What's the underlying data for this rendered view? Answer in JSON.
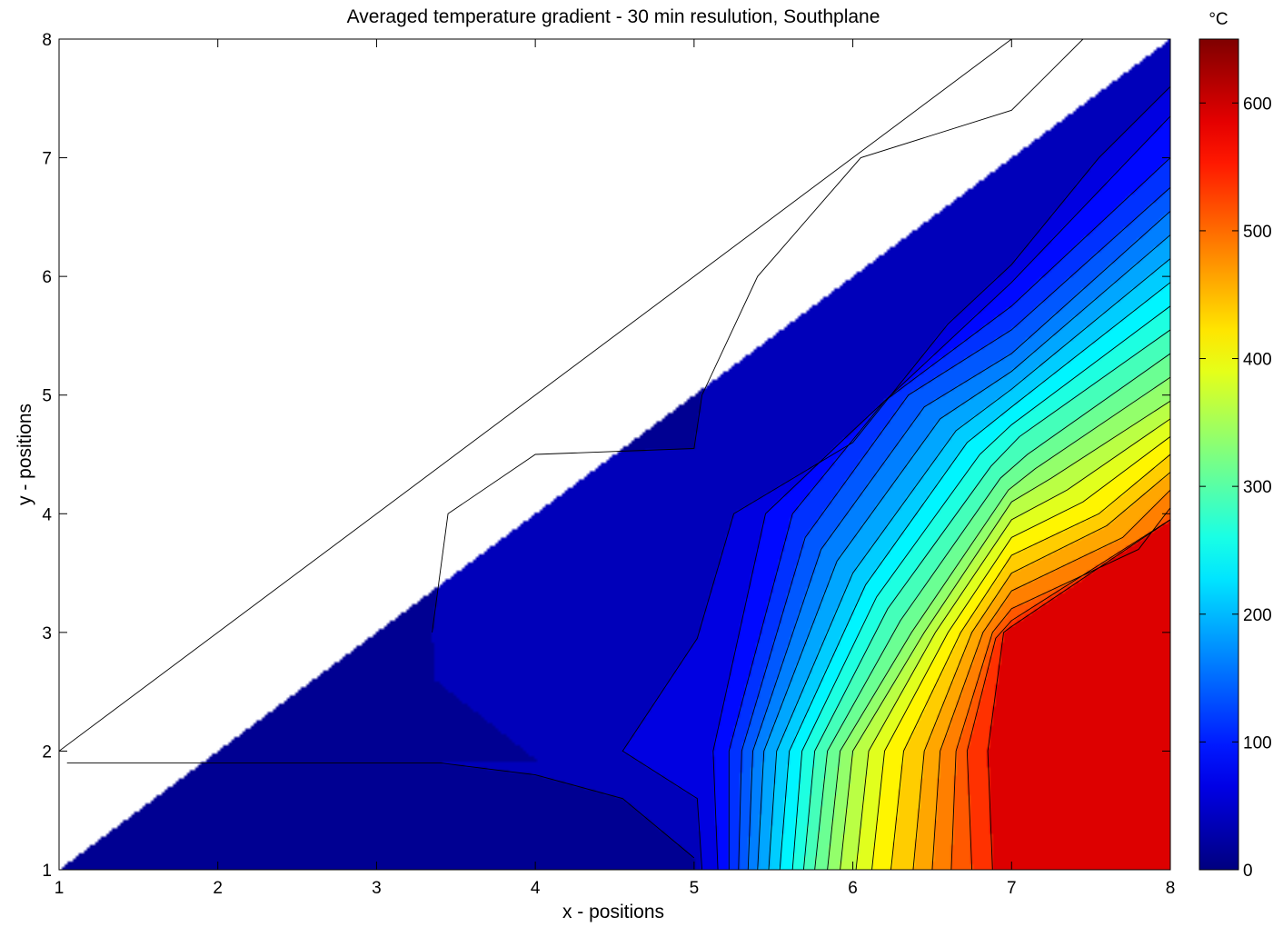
{
  "chart_data": {
    "type": "contour",
    "title": "Averaged temperature gradient - 30 min resulution, Southplane",
    "xlabel": "x - positions",
    "ylabel": "y - positions",
    "xlim": [
      1,
      8
    ],
    "ylim": [
      1,
      8
    ],
    "x_ticks": [
      "1",
      "2",
      "3",
      "4",
      "5",
      "6",
      "7",
      "8"
    ],
    "y_ticks": [
      "1",
      "2",
      "3",
      "4",
      "5",
      "6",
      "7",
      "8"
    ],
    "colorbar": {
      "unit": "°C",
      "range": [
        0,
        650
      ],
      "ticks": [
        "0",
        "100",
        "200",
        "300",
        "400",
        "500",
        "600"
      ],
      "tick_values": [
        0,
        100,
        200,
        300,
        400,
        500,
        600
      ],
      "colormap": "jet"
    },
    "levels": [
      0,
      25,
      50,
      75,
      100,
      125,
      150,
      175,
      200,
      225,
      250,
      275,
      300,
      325,
      350,
      375,
      400,
      425,
      450,
      475,
      500,
      525,
      550,
      575,
      600
    ],
    "valid_region": "y <= x (upper-left triangle is empty)",
    "contours": [
      {
        "level": 25,
        "points": [
          [
            1.05,
            1.9
          ],
          [
            3.4,
            1.9
          ],
          [
            4.0,
            1.8
          ],
          [
            4.55,
            1.6
          ],
          [
            5.0,
            1.1
          ]
        ]
      },
      {
        "level": 25,
        "points": [
          [
            3.35,
            3.0
          ],
          [
            3.45,
            4.0
          ],
          [
            4.0,
            4.5
          ],
          [
            5.0,
            4.55
          ],
          [
            5.05,
            5.0
          ],
          [
            5.4,
            6.0
          ],
          [
            6.05,
            7.0
          ],
          [
            7.0,
            7.4
          ],
          [
            7.45,
            8.0
          ]
        ]
      },
      {
        "level": 50,
        "points": [
          [
            5.05,
            1.0
          ],
          [
            5.02,
            1.6
          ],
          [
            4.55,
            2.0
          ],
          [
            5.02,
            2.95
          ],
          [
            5.25,
            4.0
          ],
          [
            6.0,
            4.6
          ],
          [
            6.6,
            5.6
          ],
          [
            7.0,
            6.1
          ],
          [
            7.55,
            7.0
          ],
          [
            8.0,
            7.6
          ]
        ]
      },
      {
        "level": 75,
        "points": [
          [
            5.15,
            1.0
          ],
          [
            5.12,
            2.0
          ],
          [
            5.45,
            4.0
          ],
          [
            6.0,
            4.7
          ],
          [
            7.0,
            5.95
          ],
          [
            8.0,
            7.35
          ]
        ]
      },
      {
        "level": 100,
        "points": [
          [
            5.22,
            1.0
          ],
          [
            5.22,
            2.0
          ],
          [
            5.62,
            4.0
          ],
          [
            6.2,
            4.95
          ],
          [
            7.0,
            5.75
          ],
          [
            8.0,
            7.0
          ]
        ]
      },
      {
        "level": 125,
        "points": [
          [
            5.28,
            1.0
          ],
          [
            5.3,
            2.0
          ],
          [
            5.7,
            3.8
          ],
          [
            6.35,
            5.0
          ],
          [
            7.0,
            5.55
          ],
          [
            8.0,
            6.75
          ]
        ]
      },
      {
        "level": 150,
        "points": [
          [
            5.34,
            1.0
          ],
          [
            5.37,
            2.0
          ],
          [
            5.8,
            3.7
          ],
          [
            6.45,
            4.9
          ],
          [
            7.0,
            5.35
          ],
          [
            8.0,
            6.55
          ]
        ]
      },
      {
        "level": 175,
        "points": [
          [
            5.4,
            1.0
          ],
          [
            5.44,
            2.0
          ],
          [
            5.9,
            3.6
          ],
          [
            6.55,
            4.8
          ],
          [
            7.0,
            5.2
          ],
          [
            8.0,
            6.35
          ]
        ]
      },
      {
        "level": 200,
        "points": [
          [
            5.47,
            1.0
          ],
          [
            5.52,
            2.0
          ],
          [
            6.0,
            3.5
          ],
          [
            6.65,
            4.7
          ],
          [
            7.0,
            5.05
          ],
          [
            8.0,
            6.15
          ]
        ]
      },
      {
        "level": 225,
        "points": [
          [
            5.54,
            1.0
          ],
          [
            5.6,
            2.0
          ],
          [
            6.08,
            3.4
          ],
          [
            6.72,
            4.6
          ],
          [
            7.0,
            4.9
          ],
          [
            8.0,
            5.95
          ]
        ]
      },
      {
        "level": 250,
        "points": [
          [
            5.62,
            1.0
          ],
          [
            5.68,
            2.0
          ],
          [
            6.15,
            3.3
          ],
          [
            6.8,
            4.5
          ],
          [
            7.0,
            4.75
          ],
          [
            8.0,
            5.75
          ]
        ]
      },
      {
        "level": 275,
        "points": [
          [
            5.69,
            1.0
          ],
          [
            5.76,
            2.0
          ],
          [
            6.22,
            3.2
          ],
          [
            6.87,
            4.4
          ],
          [
            7.05,
            4.65
          ],
          [
            8.0,
            5.55
          ]
        ]
      },
      {
        "level": 300,
        "points": [
          [
            5.76,
            1.0
          ],
          [
            5.84,
            2.0
          ],
          [
            6.3,
            3.1
          ],
          [
            6.93,
            4.3
          ],
          [
            7.1,
            4.5
          ],
          [
            8.0,
            5.35
          ]
        ]
      },
      {
        "level": 325,
        "points": [
          [
            5.84,
            1.0
          ],
          [
            5.92,
            2.0
          ],
          [
            6.37,
            3.0
          ],
          [
            6.98,
            4.2
          ],
          [
            7.15,
            4.38
          ],
          [
            8.0,
            5.15
          ]
        ]
      },
      {
        "level": 350,
        "points": [
          [
            5.92,
            1.0
          ],
          [
            6.0,
            2.0
          ],
          [
            6.45,
            3.0
          ],
          [
            7.0,
            4.1
          ],
          [
            7.25,
            4.3
          ],
          [
            8.0,
            4.95
          ]
        ]
      },
      {
        "level": 375,
        "points": [
          [
            6.02,
            1.0
          ],
          [
            6.1,
            2.0
          ],
          [
            6.52,
            3.0
          ],
          [
            7.0,
            3.95
          ],
          [
            7.35,
            4.2
          ],
          [
            8.0,
            4.8
          ]
        ]
      },
      {
        "level": 400,
        "points": [
          [
            6.12,
            1.0
          ],
          [
            6.2,
            2.0
          ],
          [
            6.6,
            3.0
          ],
          [
            7.0,
            3.8
          ],
          [
            7.45,
            4.1
          ],
          [
            8.0,
            4.65
          ]
        ]
      },
      {
        "level": 425,
        "points": [
          [
            6.24,
            1.0
          ],
          [
            6.32,
            2.0
          ],
          [
            6.68,
            3.0
          ],
          [
            7.0,
            3.65
          ],
          [
            7.55,
            4.0
          ],
          [
            8.0,
            4.5
          ]
        ]
      },
      {
        "level": 450,
        "points": [
          [
            6.38,
            1.0
          ],
          [
            6.45,
            2.0
          ],
          [
            6.75,
            3.0
          ],
          [
            7.0,
            3.5
          ],
          [
            7.6,
            3.9
          ],
          [
            8.0,
            4.35
          ]
        ]
      },
      {
        "level": 475,
        "points": [
          [
            6.5,
            1.0
          ],
          [
            6.55,
            2.0
          ],
          [
            6.82,
            3.0
          ],
          [
            7.0,
            3.35
          ],
          [
            7.7,
            3.8
          ],
          [
            8.0,
            4.2
          ]
        ]
      },
      {
        "level": 500,
        "points": [
          [
            6.62,
            1.0
          ],
          [
            6.65,
            2.0
          ],
          [
            6.88,
            3.0
          ],
          [
            7.0,
            3.2
          ],
          [
            7.8,
            3.7
          ],
          [
            8.0,
            4.05
          ]
        ]
      },
      {
        "level": 525,
        "points": [
          [
            6.75,
            1.0
          ],
          [
            6.72,
            2.0
          ],
          [
            6.9,
            2.95
          ],
          [
            7.0,
            3.1
          ],
          [
            8.0,
            3.95
          ]
        ]
      },
      {
        "level": 550,
        "points": [
          [
            6.88,
            1.0
          ],
          [
            6.85,
            2.0
          ],
          [
            6.95,
            3.0
          ],
          [
            7.0,
            3.05
          ],
          [
            8.0,
            3.95
          ]
        ]
      }
    ]
  }
}
